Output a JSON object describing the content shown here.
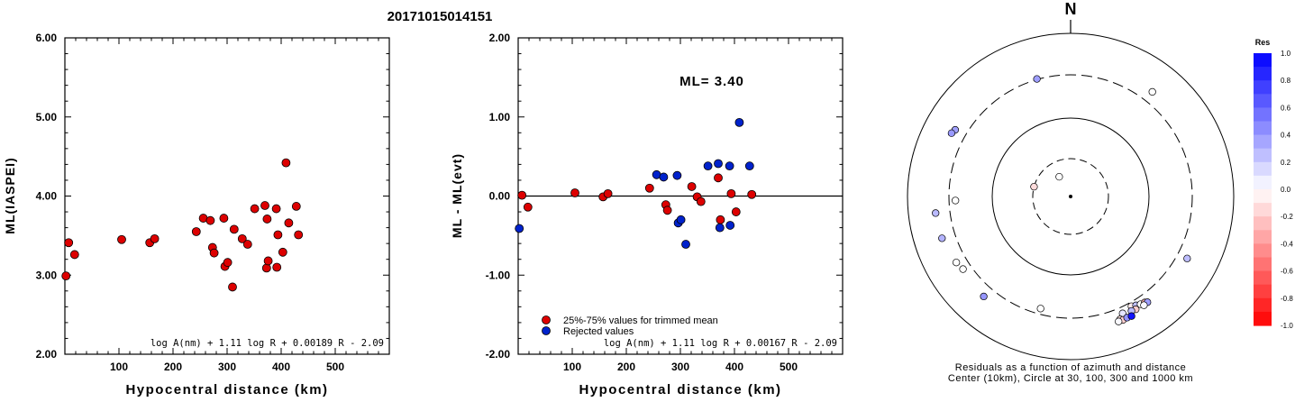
{
  "title": "20171015014151",
  "chart_data": [
    {
      "type": "scatter",
      "xlabel": "Hypocentral distance (km)",
      "ylabel": "ML(IASPEI)",
      "xlim": [
        0,
        600
      ],
      "ylim": [
        2.0,
        6.0
      ],
      "x_ticks": [
        "100",
        "200",
        "300",
        "400",
        "500"
      ],
      "y_ticks": [
        "2.00",
        "3.00",
        "4.00",
        "5.00",
        "6.00"
      ],
      "formula": "log A(nm) + 1.11 log R + 0.00189 R - 2.09",
      "marker_color": "#dd0000",
      "points": [
        [
          2,
          2.99
        ],
        [
          7,
          3.41
        ],
        [
          18,
          3.26
        ],
        [
          105,
          3.45
        ],
        [
          157,
          3.41
        ],
        [
          166,
          3.46
        ],
        [
          243,
          3.55
        ],
        [
          256,
          3.72
        ],
        [
          269,
          3.69
        ],
        [
          273,
          3.35
        ],
        [
          276,
          3.28
        ],
        [
          294,
          3.72
        ],
        [
          296,
          3.11
        ],
        [
          301,
          3.16
        ],
        [
          310,
          2.85
        ],
        [
          313,
          3.58
        ],
        [
          328,
          3.46
        ],
        [
          338,
          3.39
        ],
        [
          351,
          3.84
        ],
        [
          370,
          3.88
        ],
        [
          373,
          3.09
        ],
        [
          374,
          3.71
        ],
        [
          376,
          3.18
        ],
        [
          391,
          3.84
        ],
        [
          392,
          3.1
        ],
        [
          394,
          3.51
        ],
        [
          403,
          3.29
        ],
        [
          409,
          4.42
        ],
        [
          414,
          3.66
        ],
        [
          428,
          3.87
        ],
        [
          432,
          3.51
        ]
      ]
    },
    {
      "type": "scatter",
      "xlabel": "Hypocentral distance (km)",
      "ylabel": "ML - ML(evt)",
      "xlim": [
        0,
        600
      ],
      "ylim": [
        -2.0,
        2.0
      ],
      "x_ticks": [
        "100",
        "200",
        "300",
        "400",
        "500"
      ],
      "y_ticks": [
        "-2.00",
        "-1.00",
        "0.00",
        "1.00",
        "2.00"
      ],
      "annotation": "ML= 3.40",
      "formula": "log A(nm) + 1.11 log R + 0.00167 R - 2.09",
      "series": [
        {
          "name": "25%-75% values for trimmed mean",
          "color": "#dd0000",
          "points": [
            [
              7,
              0.01
            ],
            [
              18,
              -0.14
            ],
            [
              105,
              0.04
            ],
            [
              157,
              -0.01
            ],
            [
              166,
              0.03
            ],
            [
              243,
              0.1
            ],
            [
              273,
              -0.11
            ],
            [
              276,
              -0.18
            ],
            [
              321,
              0.12
            ],
            [
              331,
              -0.01
            ],
            [
              338,
              -0.07
            ],
            [
              370,
              0.23
            ],
            [
              374,
              -0.3
            ],
            [
              394,
              0.03
            ],
            [
              403,
              -0.2
            ],
            [
              432,
              0.02
            ]
          ]
        },
        {
          "name": "Rejected values",
          "color": "#0022cc",
          "points": [
            [
              2,
              -0.41
            ],
            [
              256,
              0.27
            ],
            [
              269,
              0.24
            ],
            [
              294,
              0.26
            ],
            [
              296,
              -0.34
            ],
            [
              301,
              -0.3
            ],
            [
              310,
              -0.61
            ],
            [
              351,
              0.38
            ],
            [
              370,
              0.41
            ],
            [
              373,
              -0.4
            ],
            [
              391,
              0.38
            ],
            [
              392,
              -0.37
            ],
            [
              409,
              0.93
            ],
            [
              428,
              0.38
            ]
          ]
        }
      ]
    },
    {
      "type": "scatter",
      "subtype": "polar",
      "north_label": "N",
      "caption_line1": "Residuals as a function of azimuth and distance",
      "caption_line2": "Center (10km), Circle at 30, 100, 300 and 1000 km",
      "colorbar_title": "Res",
      "colorbar_ticks": [
        "1.0",
        "0.8",
        "0.6",
        "0.4",
        "0.2",
        "0.0",
        "-0.2",
        "-0.4",
        "-0.6",
        "-0.8",
        "-1.0"
      ],
      "colorbar_range": [
        -1.0,
        1.0
      ],
      "stations": [
        {
          "az": 330,
          "dist": 18,
          "res": 0.0
        },
        {
          "az": 285,
          "dist": 30,
          "res": -0.14
        },
        {
          "az": 344,
          "dist": 305,
          "res": 0.38
        },
        {
          "az": 38,
          "dist": 414,
          "res": 0.0
        },
        {
          "az": 300,
          "dist": 420,
          "res": 0.37
        },
        {
          "az": 298,
          "dist": 440,
          "res": 0.4
        },
        {
          "az": 268,
          "dist": 255,
          "res": 0.0
        },
        {
          "az": 263,
          "dist": 455,
          "res": 0.27
        },
        {
          "az": 252,
          "dist": 445,
          "res": 0.3
        },
        {
          "az": 240,
          "dist": 405,
          "res": 0.0
        },
        {
          "az": 236,
          "dist": 380,
          "res": 0.0
        },
        {
          "az": 221,
          "dist": 410,
          "res": 0.41
        },
        {
          "az": 195,
          "dist": 260,
          "res": 0.0
        },
        {
          "az": 118,
          "dist": 405,
          "res": 0.26
        },
        {
          "az": 151,
          "dist": 335,
          "res": -0.07
        },
        {
          "az": 149,
          "dist": 350,
          "res": 0.24
        },
        {
          "az": 147,
          "dist": 365,
          "res": -0.01
        },
        {
          "az": 145,
          "dist": 375,
          "res": -0.3
        },
        {
          "az": 144,
          "dist": 390,
          "res": 0.38
        },
        {
          "az": 146,
          "dist": 395,
          "res": 0.03
        },
        {
          "az": 150,
          "dist": 385,
          "res": -0.2
        },
        {
          "az": 152,
          "dist": 378,
          "res": 0.27
        },
        {
          "az": 156,
          "dist": 360,
          "res": 0.1
        },
        {
          "az": 158,
          "dist": 410,
          "res": -0.11
        },
        {
          "az": 157,
          "dist": 430,
          "res": -0.18
        },
        {
          "az": 155,
          "dist": 425,
          "res": 0.41
        },
        {
          "az": 153,
          "dist": 432,
          "res": 0.93
        },
        {
          "az": 159,
          "dist": 428,
          "res": 0.02
        }
      ]
    }
  ]
}
